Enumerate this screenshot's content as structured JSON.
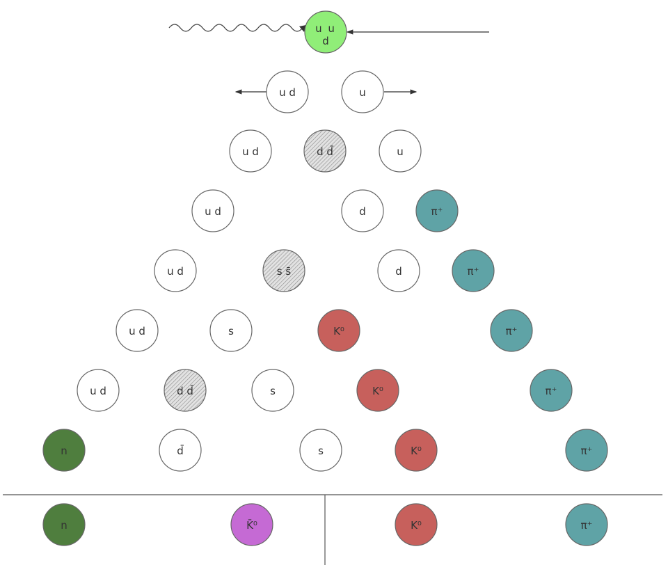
{
  "colors": {
    "proton": "#90ee78",
    "neutron": "#4f7e3e",
    "kaon": "#c7605c",
    "pion": "#5fa3a6",
    "antikaon": "#c56ad4",
    "quark_fill": "#ffffff",
    "pair_hatch": "#8a8a8a",
    "stroke": "#666666"
  },
  "incoming": {
    "target_top": "u u",
    "target_bottom": "d",
    "photon": "wavy-line",
    "arrow": "left-arrow"
  },
  "split": {
    "left": "u d",
    "right": "u"
  },
  "rows": [
    [
      {
        "label": "u d",
        "kind": "quark"
      },
      {
        "label": "d d̄",
        "kind": "pair"
      },
      {
        "label": "u",
        "kind": "quark"
      }
    ],
    [
      {
        "label": "u d",
        "kind": "quark"
      },
      {
        "label": "d",
        "kind": "quark"
      },
      {
        "label": "π⁺",
        "kind": "pion"
      }
    ],
    [
      {
        "label": "u d",
        "kind": "quark"
      },
      {
        "label": "s s̄",
        "kind": "pair"
      },
      {
        "label": "d",
        "kind": "quark"
      },
      {
        "label": "π⁺",
        "kind": "pion"
      }
    ],
    [
      {
        "label": "u d",
        "kind": "quark"
      },
      {
        "label": "s",
        "kind": "quark"
      },
      {
        "label": "K⁰",
        "kind": "kaon"
      },
      {
        "label": "π⁺",
        "kind": "pion"
      }
    ],
    [
      {
        "label": "u d",
        "kind": "quark"
      },
      {
        "label": "d d̄",
        "kind": "pair"
      },
      {
        "label": "s",
        "kind": "quark"
      },
      {
        "label": "K⁰",
        "kind": "kaon"
      },
      {
        "label": "π⁺",
        "kind": "pion"
      }
    ],
    [
      {
        "label": "n",
        "kind": "neutron"
      },
      {
        "label": "d̄",
        "kind": "quark"
      },
      {
        "label": "s",
        "kind": "quark"
      },
      {
        "label": "K⁰",
        "kind": "kaon"
      },
      {
        "label": "π⁺",
        "kind": "pion"
      }
    ]
  ],
  "final": [
    {
      "label": "n",
      "kind": "neutron"
    },
    {
      "label": "K̄⁰",
      "kind": "antikaon"
    },
    {
      "label": "K⁰",
      "kind": "kaon"
    },
    {
      "label": "π⁺",
      "kind": "pion"
    }
  ]
}
